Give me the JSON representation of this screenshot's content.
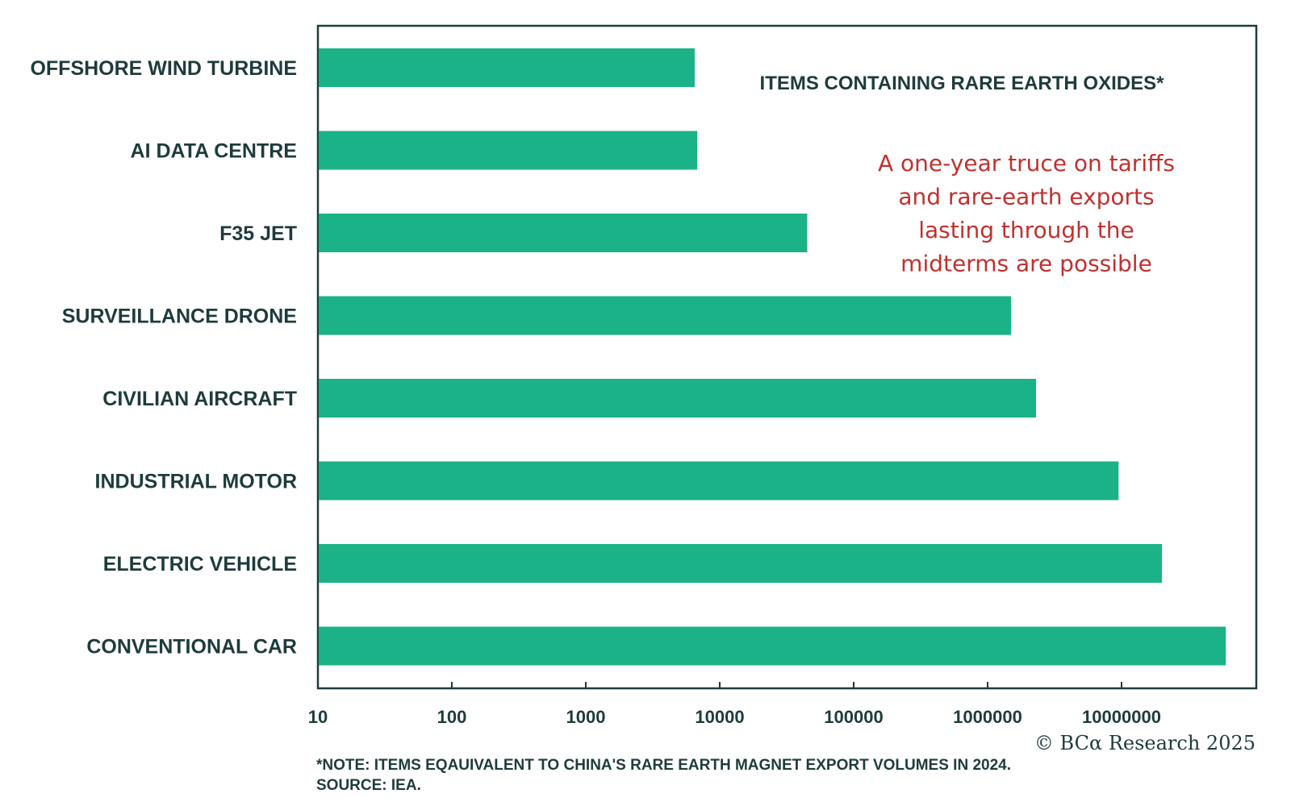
{
  "chart_data": {
    "type": "bar",
    "orientation": "horizontal",
    "x_scale": "log",
    "xlim": [
      10,
      100000000
    ],
    "categories": [
      "OFFSHORE WIND TURBINE",
      "AI DATA CENTRE",
      "F35 JET",
      "SURVEILLANCE DRONE",
      "CIVILIAN AIRCRAFT",
      "INDUSTRIAL MOTOR",
      "ELECTRIC VEHICLE",
      "CONVENTIONAL CAR"
    ],
    "values": [
      6500,
      6800,
      45000,
      1500000,
      2300000,
      9500000,
      20000000,
      60000000
    ],
    "x_tick_labels": [
      "10",
      "100",
      "1000",
      "10000",
      "100000",
      "1000000",
      "10000000"
    ],
    "legend_label": "ITEMS CONTAINING RARE EARTH OXIDES*",
    "annotation_lines": [
      "A one-year truce on tariffs",
      "and rare-earth exports",
      "lasting through the",
      "midterms are possible"
    ],
    "note": "*NOTE: ITEMS EQAUIVALENT TO CHINA'S RARE EARTH MAGNET EXPORT VOLUMES IN 2024.",
    "source": "SOURCE: IEA.",
    "copyright": "© BCα Research 2025",
    "grid": false,
    "colors": {
      "bar": "#1ab286",
      "text": "#1f3b3b",
      "annotation": "#c0312f",
      "axis": "#1f3b3b"
    }
  }
}
